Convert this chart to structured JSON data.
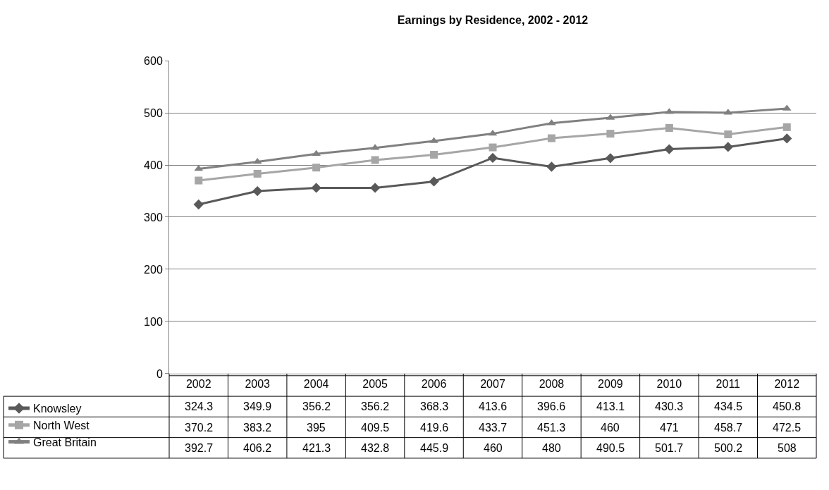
{
  "chart_data": {
    "type": "line",
    "title": "Earnings by Residence, 2002 - 2012",
    "categories": [
      "2002",
      "2003",
      "2004",
      "2005",
      "2006",
      "2007",
      "2008",
      "2009",
      "2010",
      "2011",
      "2012"
    ],
    "series": [
      {
        "name": "Knowsley",
        "color": "#595959",
        "marker": "diamond",
        "values": [
          324.3,
          349.9,
          356.2,
          356.2,
          368.3,
          413.6,
          396.6,
          413.1,
          430.3,
          434.5,
          450.8
        ]
      },
      {
        "name": "North West",
        "color": "#a6a6a6",
        "marker": "square",
        "values": [
          370.2,
          383.2,
          395,
          409.5,
          419.6,
          433.7,
          451.3,
          460,
          471,
          458.7,
          472.5
        ]
      },
      {
        "name": "Great Britain",
        "color": "#808080",
        "marker": "triangle",
        "values": [
          392.7,
          406.2,
          421.3,
          432.8,
          445.9,
          460,
          480,
          490.5,
          501.7,
          500.2,
          508
        ]
      }
    ],
    "ylim": [
      0,
      600
    ],
    "yticks": [
      0,
      100,
      200,
      300,
      400,
      500,
      600
    ],
    "grid": "y",
    "legend": "bottom left",
    "data_labels": true,
    "line_style": "solid"
  }
}
